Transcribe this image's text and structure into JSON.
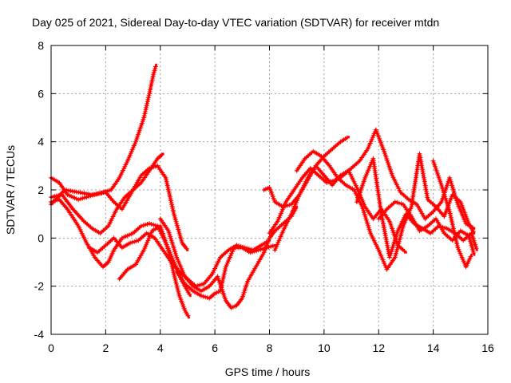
{
  "chart_data": {
    "type": "scatter",
    "title": "Day 025 of 2021, Sidereal Day-to-day VTEC variation (SDTVAR) for receiver mtdn",
    "xlabel": "GPS time / hours",
    "ylabel": "SDTVAR / TECUs",
    "xlim": [
      0,
      16
    ],
    "ylim": [
      -4,
      8
    ],
    "xticks": [
      "0",
      "2",
      "4",
      "6",
      "8",
      "10",
      "12",
      "14",
      "16"
    ],
    "yticks": [
      "-4",
      "-2",
      "0",
      "2",
      "4",
      "6",
      "8"
    ],
    "grid": true,
    "marker": "+",
    "color": "#ff0000",
    "series": [
      {
        "name": "s1",
        "x": [
          0.0,
          0.3,
          0.6,
          1.0,
          1.3,
          1.6,
          1.9,
          2.2,
          2.5,
          2.8,
          3.1,
          3.4,
          3.6,
          3.75,
          3.85
        ],
        "y": [
          2.5,
          2.3,
          1.8,
          1.6,
          1.7,
          1.8,
          1.9,
          2.0,
          2.5,
          3.2,
          4.0,
          5.0,
          6.0,
          6.8,
          7.2
        ]
      },
      {
        "name": "s2",
        "x": [
          0.0,
          0.4,
          0.8,
          1.2,
          1.5,
          1.8,
          2.1,
          2.4,
          2.7,
          3.0,
          3.3,
          3.6,
          3.9,
          4.1
        ],
        "y": [
          1.7,
          1.8,
          1.2,
          0.7,
          0.4,
          0.2,
          0.5,
          1.2,
          1.7,
          2.0,
          2.3,
          2.8,
          3.3,
          3.5
        ]
      },
      {
        "name": "s3",
        "x": [
          0.0,
          0.5,
          1.0,
          1.5,
          2.0,
          2.3,
          2.6,
          3.0,
          3.3,
          3.6,
          3.9,
          4.2,
          4.5,
          4.8,
          5.0
        ],
        "y": [
          1.4,
          2.0,
          1.9,
          1.8,
          1.9,
          1.5,
          1.2,
          2.0,
          2.6,
          2.9,
          3.0,
          2.5,
          1.0,
          -0.2,
          -0.5
        ]
      },
      {
        "name": "s4",
        "x": [
          0.0,
          0.3,
          0.6,
          1.0,
          1.3,
          1.6,
          1.9,
          2.1,
          2.3,
          2.6,
          3.0,
          3.3,
          3.6,
          3.9,
          4.2,
          4.5,
          4.8,
          5.1
        ],
        "y": [
          1.5,
          1.6,
          1.2,
          0.5,
          -0.2,
          -0.8,
          -1.2,
          -1.0,
          -0.5,
          0.0,
          0.2,
          0.5,
          0.6,
          0.5,
          -0.2,
          -1.0,
          -1.8,
          -2.4
        ]
      },
      {
        "name": "s5",
        "x": [
          1.4,
          1.7,
          2.0,
          2.3,
          2.6,
          2.9,
          3.2,
          3.5,
          3.8,
          4.1,
          4.4,
          4.7,
          5.0,
          5.3,
          5.6,
          5.9,
          6.2,
          6.5,
          6.8,
          7.1,
          7.4,
          7.7,
          8.0
        ],
        "y": [
          -0.4,
          -0.6,
          -0.3,
          0.0,
          -0.4,
          -0.2,
          -0.1,
          0.2,
          0.0,
          -0.5,
          -1.0,
          -1.4,
          -1.7,
          -2.0,
          -1.9,
          -1.5,
          -0.8,
          -0.5,
          -0.3,
          -0.4,
          -0.5,
          -0.3,
          -0.1
        ]
      },
      {
        "name": "s6",
        "x": [
          2.5,
          2.8,
          3.1,
          3.4,
          3.7,
          4.0,
          4.3,
          4.5,
          4.7,
          4.9,
          5.05
        ],
        "y": [
          -1.7,
          -1.3,
          -1.1,
          -0.5,
          0.3,
          0.5,
          -0.5,
          -1.5,
          -2.4,
          -3.0,
          -3.3
        ]
      },
      {
        "name": "s7",
        "x": [
          4.0,
          4.3,
          4.6,
          4.9,
          5.2,
          5.5,
          5.8,
          6.1,
          6.4,
          6.6,
          6.8,
          7.0,
          7.2,
          7.5,
          7.8,
          8.0,
          8.2,
          8.5,
          8.8,
          9.0
        ],
        "y": [
          0.8,
          0.3,
          -0.8,
          -1.6,
          -2.0,
          -2.2,
          -2.0,
          -1.6,
          -2.6,
          -2.9,
          -2.8,
          -2.5,
          -1.8,
          -1.2,
          -0.6,
          0.0,
          0.3,
          0.6,
          0.9,
          1.3
        ]
      },
      {
        "name": "s8",
        "x": [
          4.6,
          4.9,
          5.2,
          5.5,
          5.8,
          6.0,
          6.2,
          6.4,
          6.7,
          7.0,
          7.3,
          7.6,
          7.9,
          8.2
        ],
        "y": [
          -1.4,
          -1.9,
          -2.2,
          -2.4,
          -2.5,
          -2.3,
          -2.2,
          -1.2,
          -0.4,
          -0.4,
          -0.6,
          -0.5,
          -0.4,
          -0.3
        ]
      },
      {
        "name": "s9",
        "x": [
          7.8,
          8.0,
          8.2,
          8.5,
          8.8,
          9.1,
          9.4,
          9.7,
          10.0,
          10.3,
          10.6,
          10.9
        ],
        "y": [
          2.0,
          2.1,
          1.5,
          1.3,
          1.4,
          1.8,
          2.4,
          3.0,
          3.4,
          3.7,
          4.0,
          4.2
        ]
      },
      {
        "name": "s10",
        "x": [
          8.0,
          8.3,
          8.6,
          8.9,
          9.2,
          9.5,
          9.8,
          10.1,
          10.4,
          10.7,
          11.0,
          11.3,
          11.6,
          11.9,
          12.2,
          12.5,
          12.8,
          13.1
        ],
        "y": [
          0.2,
          0.7,
          1.5,
          2.0,
          2.5,
          2.9,
          2.6,
          2.3,
          2.4,
          2.6,
          2.9,
          3.2,
          3.7,
          4.5,
          3.6,
          2.6,
          1.9,
          1.6
        ]
      },
      {
        "name": "s11",
        "x": [
          8.2,
          8.5,
          8.8,
          9.1,
          9.4,
          9.7,
          10.0,
          10.3,
          10.6,
          10.9,
          11.2,
          11.5,
          11.8,
          12.1,
          12.4,
          12.7,
          13.0
        ],
        "y": [
          -0.5,
          0.3,
          1.0,
          1.8,
          2.5,
          3.0,
          2.6,
          2.2,
          2.6,
          2.8,
          2.1,
          1.3,
          0.8,
          1.2,
          0.7,
          -0.3,
          -0.6
        ]
      },
      {
        "name": "s12",
        "x": [
          9.0,
          9.3,
          9.6,
          9.9,
          10.2,
          10.5,
          10.8,
          11.1,
          11.4,
          11.7,
          12.0,
          12.3,
          12.6,
          12.9,
          13.2,
          13.5,
          13.8,
          14.1,
          14.4,
          14.7,
          15.0,
          15.3,
          15.5
        ],
        "y": [
          2.8,
          3.3,
          3.6,
          3.4,
          3.0,
          2.5,
          2.2,
          2.0,
          1.3,
          0.2,
          -0.5,
          -1.3,
          -0.8,
          0.5,
          1.3,
          3.5,
          1.6,
          1.3,
          0.9,
          1.8,
          1.5,
          0.6,
          0.2
        ]
      },
      {
        "name": "s13",
        "x": [
          11.2,
          11.5,
          11.8,
          12.1,
          12.4,
          12.7,
          13.0,
          13.3,
          13.6,
          13.9,
          14.2,
          14.5,
          14.8,
          15.1,
          15.4,
          15.6
        ],
        "y": [
          1.5,
          2.5,
          3.3,
          1.0,
          -0.8,
          0.3,
          1.0,
          0.6,
          0.4,
          0.2,
          0.5,
          0.4,
          0.2,
          -0.1,
          0.2,
          -0.5
        ]
      },
      {
        "name": "s14",
        "x": [
          12.0,
          12.3,
          12.6,
          12.9,
          13.2,
          13.5,
          13.8,
          14.1,
          14.4,
          14.7,
          15.0,
          15.3,
          15.5
        ],
        "y": [
          0.8,
          1.2,
          1.5,
          1.4,
          0.9,
          0.3,
          0.5,
          0.8,
          0.2,
          -0.1,
          0.3,
          0.1,
          -0.7
        ]
      },
      {
        "name": "s15",
        "x": [
          13.1,
          13.4,
          13.7,
          14.0,
          14.3,
          14.6,
          14.9,
          15.2,
          15.5
        ],
        "y": [
          1.6,
          1.4,
          0.8,
          1.1,
          1.5,
          2.5,
          1.4,
          0.6,
          0.4
        ]
      },
      {
        "name": "s16",
        "x": [
          14.0,
          14.3,
          14.6,
          14.9,
          15.2,
          15.4
        ],
        "y": [
          3.2,
          2.2,
          1.1,
          -0.4,
          -1.2,
          -0.7
        ]
      }
    ]
  }
}
